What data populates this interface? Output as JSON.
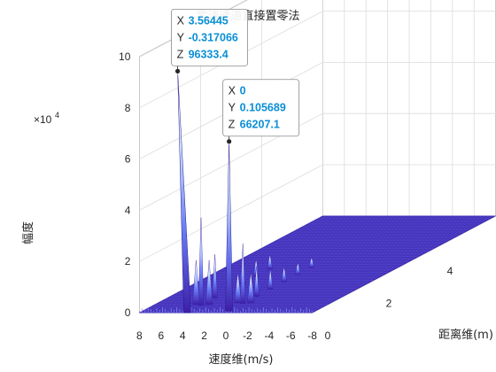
{
  "chart_data": {
    "type": "surface",
    "title": "零速通道直接置零法",
    "xlabel": "速度维(m/s)",
    "ylabel": "距离维(m)",
    "zlabel": "幅度",
    "z_exponent_label": "×10",
    "z_exponent_value": "4",
    "xlim": [
      -8,
      8
    ],
    "ylim": [
      0,
      6
    ],
    "zlim": [
      0,
      100000
    ],
    "x_ticks": [
      "8",
      "6",
      "4",
      "2",
      "0",
      "-2",
      "-4",
      "-6",
      "-8"
    ],
    "x_tick_values": [
      8,
      6,
      4,
      2,
      0,
      -2,
      -4,
      -6,
      -8
    ],
    "y_ticks": [
      "0",
      "2",
      "4",
      "6"
    ],
    "y_tick_values": [
      0,
      2,
      4,
      6
    ],
    "z_ticks": [
      "0",
      "2",
      "4",
      "6",
      "8",
      "10"
    ],
    "z_tick_values": [
      0,
      20000,
      40000,
      60000,
      80000,
      100000
    ],
    "grid": true,
    "colormap": [
      "#3c1fa8",
      "#4433d8",
      "#5a5df0",
      "#9fb0ff",
      "#dde6ff",
      "#ffffff"
    ],
    "peaks": [
      {
        "x": 3.56445,
        "y": -0.317066,
        "z": 96333.4
      },
      {
        "x": 0,
        "y": 0.105689,
        "z": 66207.1
      }
    ],
    "datatips": [
      {
        "X": "3.56445",
        "Y": "-0.317066",
        "Z": "96333.4"
      },
      {
        "X": "0",
        "Y": "0.105689",
        "Z": "66207.1"
      }
    ]
  }
}
